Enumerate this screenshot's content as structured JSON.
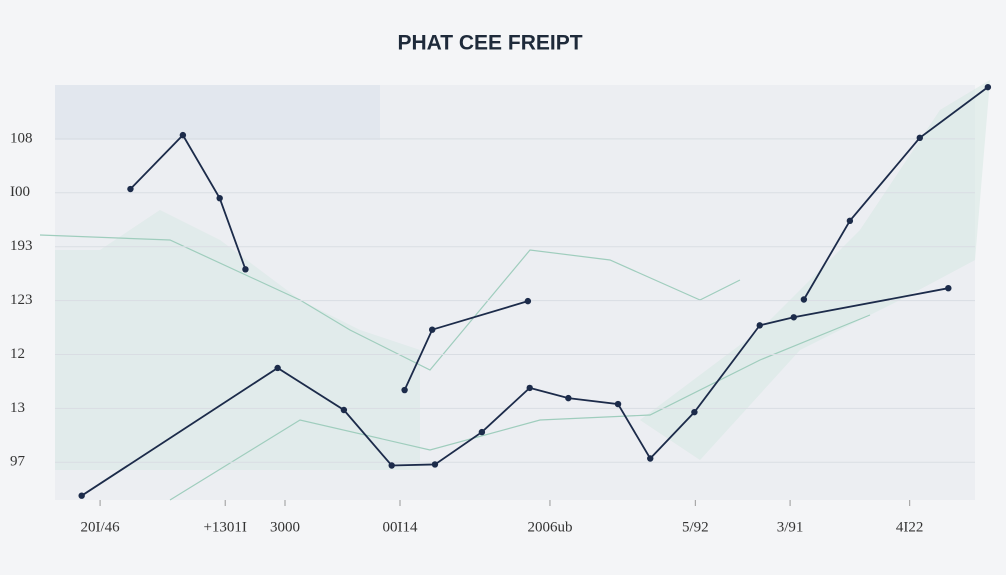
{
  "chart_data": {
    "type": "line",
    "title": "PHAT CEE FREIPT",
    "xlim": [
      0,
      10
    ],
    "ylim": [
      -0.7,
      7
    ],
    "xticks": [
      {
        "value": 0.49,
        "label": "20I/46"
      },
      {
        "value": 1.85,
        "label": "+1301I"
      },
      {
        "value": 2.5,
        "label": "3000"
      },
      {
        "value": 3.75,
        "label": "00I14"
      },
      {
        "value": 5.38,
        "label": "2006ub"
      },
      {
        "value": 6.96,
        "label": "5/92"
      },
      {
        "value": 7.99,
        "label": "3/91"
      },
      {
        "value": 9.29,
        "label": "4I22"
      }
    ],
    "yticks": [
      {
        "value": 6,
        "label": "108"
      },
      {
        "value": 5,
        "label": "I00"
      },
      {
        "value": 4,
        "label": "193"
      },
      {
        "value": 3,
        "label": "123"
      },
      {
        "value": 2,
        "label": "12"
      },
      {
        "value": 1,
        "label": "13"
      },
      {
        "value": 0,
        "label": "97"
      }
    ],
    "grid": true,
    "series": [
      {
        "color": "#1c2b4a",
        "x": [
          0.29,
          2.42,
          3.14,
          3.66,
          4.13,
          4.64,
          5.16,
          5.58,
          6.12,
          6.47,
          6.95,
          7.66,
          8.03,
          9.71
        ],
        "values": [
          -0.62,
          1.75,
          0.97,
          -0.06,
          -0.04,
          0.56,
          1.38,
          1.19,
          1.08,
          0.07,
          0.93,
          2.54,
          2.69,
          3.23
        ]
      },
      {
        "color": "#1c2b4a",
        "x": [
          0.82,
          1.39,
          1.79,
          2.07,
          3.5,
          3.8,
          4.1,
          5.14,
          6.5,
          8.14,
          8.64,
          9.4,
          10.14
        ],
        "values": [
          5.07,
          6.07,
          4.9,
          3.58,
          null,
          1.34,
          2.46,
          2.99,
          null,
          3.02,
          4.48,
          6.02,
          6.96
        ]
      }
    ]
  }
}
